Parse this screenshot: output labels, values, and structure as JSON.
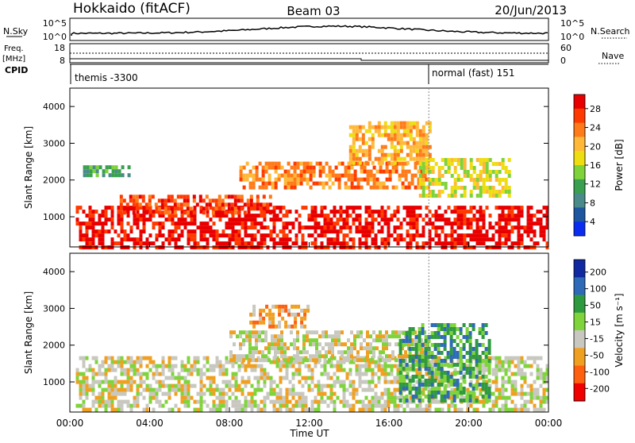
{
  "header": {
    "station": "Hokkaido (fitACF)",
    "beam": "Beam 03",
    "date": "20/Jun/2013"
  },
  "top_panels": {
    "nsky_label": "N.Sky",
    "nsky_ticks": [
      "10^5",
      "10^0"
    ],
    "nsearch_label": "N.Search",
    "nsearch_ticks": [
      "10^5",
      "10^0"
    ],
    "freq_label": "Freq.",
    "freq_unit": "[MHz]",
    "freq_ticks": [
      "18",
      "8"
    ],
    "nave_label": "Nave",
    "nave_ticks": [
      "60",
      "0"
    ],
    "cpid_label": "CPID",
    "cpid_segments": [
      {
        "label": "themis -3300",
        "start_hour": 0
      },
      {
        "label": "normal (fast) 151",
        "start_hour": 18
      }
    ]
  },
  "chart_data": [
    {
      "type": "heatmap",
      "panel": "power",
      "xlabel": "Time UT",
      "ylabel": "Slant Range [km]",
      "x_ticks": [
        "00:00",
        "04:00",
        "08:00",
        "12:00",
        "16:00",
        "20:00",
        "00:00"
      ],
      "xlim_hours": [
        0,
        24
      ],
      "ylim": [
        180,
        4500
      ],
      "y_ticks": [
        1000,
        2000,
        3000,
        4000
      ],
      "colorbar_label": "Power [dB]",
      "colorbar_ticks": [
        "28",
        "24",
        "20",
        "16",
        "12",
        "8",
        "4"
      ],
      "colorbar_colors": [
        "#e80000",
        "#ff3a00",
        "#ff7a18",
        "#ffb838",
        "#eedd10",
        "#7ed23a",
        "#3aa050",
        "#4a8a8a",
        "#1e56a0",
        "#0a2cf0"
      ],
      "echo_regions": [
        {
          "t0": 0.3,
          "t1": 24,
          "r0": 200,
          "r1": 1300,
          "level": "28"
        },
        {
          "t0": 2.5,
          "t1": 10,
          "r0": 1100,
          "r1": 1600,
          "level": "24"
        },
        {
          "t0": 8.5,
          "t1": 18,
          "r0": 1800,
          "r1": 2500,
          "level": "20"
        },
        {
          "t0": 14,
          "t1": 18,
          "r0": 2500,
          "r1": 3600,
          "level": "16"
        },
        {
          "t0": 17.5,
          "t1": 22,
          "r0": 1600,
          "r1": 2600,
          "level": "12"
        },
        {
          "t0": 0.5,
          "t1": 3,
          "r0": 2100,
          "r1": 2400,
          "level": "4"
        }
      ]
    },
    {
      "type": "heatmap",
      "panel": "velocity",
      "xlabel": "Time UT",
      "ylabel": "Slant Range [km]",
      "x_ticks": [
        "00:00",
        "04:00",
        "08:00",
        "12:00",
        "16:00",
        "20:00",
        "00:00"
      ],
      "xlim_hours": [
        0,
        24
      ],
      "ylim": [
        180,
        4500
      ],
      "y_ticks": [
        1000,
        2000,
        3000,
        4000
      ],
      "colorbar_label": "Velocity [m s⁻¹]",
      "colorbar_ticks": [
        "200",
        "100",
        "50",
        "15",
        "-15",
        "-50",
        "-100",
        "-200"
      ],
      "colorbar_colors": [
        "#1028a0",
        "#2e6ab8",
        "#2e9a40",
        "#7ed43a",
        "#c8c8c0",
        "#f0a020",
        "#ff6010",
        "#f00000"
      ],
      "echo_regions": [
        {
          "t0": 0.3,
          "t1": 24,
          "r0": 250,
          "r1": 1700,
          "level": "-15"
        },
        {
          "t0": 8,
          "t1": 18,
          "r0": 1600,
          "r1": 2400,
          "level": "-15"
        },
        {
          "t0": 9,
          "t1": 12,
          "r0": 2500,
          "r1": 3100,
          "level": "-50"
        },
        {
          "t0": 16.5,
          "t1": 21,
          "r0": 500,
          "r1": 2600,
          "level": "50"
        }
      ]
    }
  ]
}
